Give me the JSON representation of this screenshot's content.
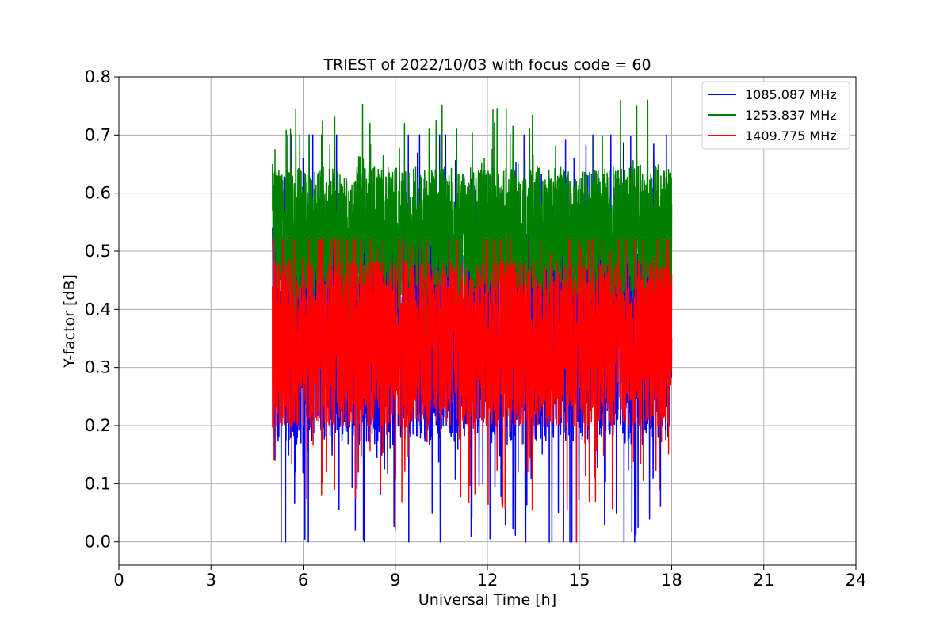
{
  "chart_data": {
    "type": "line",
    "title": "TRIEST of 2022/10/03 with focus code = 60",
    "xlabel": "Universal Time [h]",
    "ylabel": "Y-factor [dB]",
    "xlim": [
      0,
      24
    ],
    "ylim": [
      -0.04,
      0.8
    ],
    "xticks": [
      0,
      3,
      6,
      9,
      12,
      15,
      18,
      21,
      24
    ],
    "yticks": [
      0.0,
      0.1,
      0.2,
      0.3,
      0.4,
      0.5,
      0.6,
      0.7,
      0.8
    ],
    "grid": true,
    "legend_position": "top-right",
    "x_range_of_data": [
      5.0,
      18.0
    ],
    "series": [
      {
        "name": "1085.087 MHz",
        "color": "#0000ff",
        "mean": 0.36,
        "min": 0.0,
        "max": 0.7,
        "envelope": [
          [
            5.0,
            0.54
          ],
          [
            5.5,
            0.7
          ],
          [
            6.0,
            0.66
          ],
          [
            7.0,
            0.58
          ],
          [
            7.7,
            0.02
          ],
          [
            8.5,
            0.6
          ],
          [
            9.0,
            0.05
          ],
          [
            10.2,
            0.05
          ],
          [
            11.0,
            0.22
          ],
          [
            12.0,
            0.33
          ],
          [
            13.0,
            0.12
          ],
          [
            13.25,
            0.0
          ],
          [
            14.0,
            0.33
          ],
          [
            14.9,
            0.0
          ],
          [
            15.5,
            0.22
          ],
          [
            16.2,
            0.05
          ],
          [
            17.0,
            0.3
          ],
          [
            18.0,
            0.35
          ]
        ]
      },
      {
        "name": "1253.837 MHz",
        "color": "#008000",
        "mean": 0.53,
        "min": 0.34,
        "max": 0.76,
        "envelope": [
          [
            5.0,
            0.65
          ],
          [
            5.5,
            0.7
          ],
          [
            6.6,
            0.7
          ],
          [
            9.3,
            0.72
          ],
          [
            10.1,
            0.71
          ],
          [
            11.0,
            0.71
          ],
          [
            11.9,
            0.66
          ],
          [
            13.0,
            0.65
          ],
          [
            14.2,
            0.64
          ],
          [
            15.0,
            0.58
          ],
          [
            16.0,
            0.59
          ],
          [
            17.22,
            0.76
          ],
          [
            18.0,
            0.58
          ]
        ]
      },
      {
        "name": "1409.775 MHz",
        "color": "#ff0000",
        "mean": 0.34,
        "min": 0.0,
        "max": 0.52,
        "envelope": [
          [
            5.0,
            0.44
          ],
          [
            6.6,
            0.08
          ],
          [
            7.8,
            0.12
          ],
          [
            9.0,
            0.02
          ],
          [
            10.0,
            0.5
          ],
          [
            11.0,
            0.5
          ],
          [
            12.0,
            0.52
          ],
          [
            12.5,
            0.06
          ],
          [
            13.0,
            0.48
          ],
          [
            14.9,
            0.0
          ],
          [
            16.0,
            0.5
          ],
          [
            17.6,
            0.09
          ],
          [
            18.0,
            0.46
          ]
        ]
      }
    ]
  }
}
